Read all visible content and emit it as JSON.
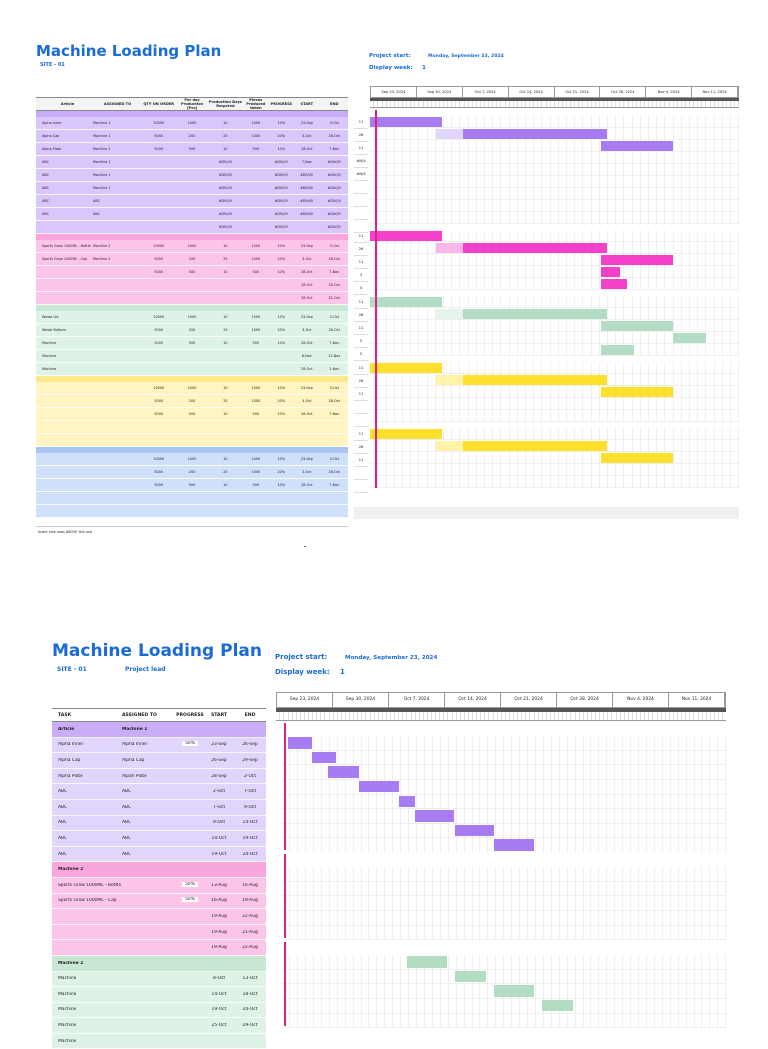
{
  "page1": {
    "title": "Machine Loading Plan",
    "site": "SITE - 01",
    "project_start_label": "Project start:",
    "project_start_value": "Monday, September 23, 2024",
    "display_week_label": "Display week:",
    "display_week_value": "1",
    "weeks": [
      "Sep 23, 2024",
      "Sep 30, 2024",
      "Oct 7, 2024",
      "Oct 14, 2024",
      "Oct 21, 2024",
      "Oct 28, 2024",
      "Nov 4, 2024",
      "Nov 11, 2024"
    ],
    "columns": [
      "Article",
      "ASSIGNED TO",
      "QTY ON ORDER",
      "Per day Production [Pcs]",
      "Production Days Required",
      "Pieces Produced taken",
      "PROGRESS",
      "START",
      "END"
    ],
    "sections": [
      {
        "color": "#d9c6fb",
        "bar_color": "#c9adf7",
        "gantt_color": "#a77cf2",
        "gantt_light": "#e2d5fb",
        "rows": [
          {
            "article": "Alpha Inner",
            "assigned": "Machine 1",
            "qty": "10000",
            "per_day": "1000",
            "days": "10",
            "pieces": "1000",
            "progress": "10%",
            "start": "23-Sep",
            "end": "3-Oct",
            "days_col": "11"
          },
          {
            "article": "Alpha Cap",
            "assigned": "Machine 1",
            "qty": "5000",
            "per_day": "200",
            "days": "25",
            "pieces": "1000",
            "progress": "20%",
            "start": "3-Oct",
            "end": "28-Oct",
            "days_col": "26"
          },
          {
            "article": "Alpha Plate",
            "assigned": "Machine 2",
            "qty": "5000",
            "per_day": "500",
            "days": "10",
            "pieces": "500",
            "progress": "10%",
            "start": "28-Oct",
            "end": "7-Nov",
            "days_col": "11"
          },
          {
            "article": "ABC",
            "assigned": "Machine 1",
            "qty": "",
            "per_day": "",
            "days": "#DIV/0!",
            "pieces": "",
            "progress": "#DIV/0!",
            "start": "7-Nov",
            "end": "#DIV/0!",
            "days_col": "#N/A"
          },
          {
            "article": "ABC",
            "assigned": "Machine 1",
            "qty": "",
            "per_day": "",
            "days": "#DIV/0!",
            "pieces": "",
            "progress": "#DIV/0!",
            "start": "#DIV/0!",
            "end": "#DIV/0!",
            "days_col": "#N/A"
          },
          {
            "article": "ABC",
            "assigned": "Machine 1",
            "qty": "",
            "per_day": "",
            "days": "#DIV/0!",
            "pieces": "",
            "progress": "#DIV/0!",
            "start": "#DIV/0!",
            "end": "#DIV/0!",
            "days_col": ""
          },
          {
            "article": "ABC",
            "assigned": "ABC",
            "qty": "",
            "per_day": "",
            "days": "#DIV/0!",
            "pieces": "",
            "progress": "#DIV/0!",
            "start": "#DIV/0!",
            "end": "#DIV/0!",
            "days_col": ""
          },
          {
            "article": "ABC",
            "assigned": "ABC",
            "qty": "",
            "per_day": "",
            "days": "#DIV/0!",
            "pieces": "",
            "progress": "#DIV/0!",
            "start": "#DIV/0!",
            "end": "#DIV/0!",
            "days_col": ""
          },
          {
            "article": "",
            "assigned": "",
            "qty": "",
            "per_day": "",
            "days": "#DIV/0!",
            "pieces": "",
            "progress": "#DIV/0!",
            "start": "",
            "end": "#DIV/0!",
            "days_col": ""
          }
        ]
      },
      {
        "color": "#fdc4ea",
        "bar_color": "#f9a6dd",
        "gantt_color": "#f441c9",
        "gantt_light": "#fab8e8",
        "rows": [
          {
            "article": "Sports Grow 1000ML - Bottle",
            "assigned": "Machine 2",
            "qty": "10000",
            "per_day": "1000",
            "days": "10",
            "pieces": "1000",
            "progress": "10%",
            "start": "23-Sep",
            "end": "3-Oct",
            "days_col": "11"
          },
          {
            "article": "Sports Grow 1000ML - Cap",
            "assigned": "Machine 2",
            "qty": "5000",
            "per_day": "200",
            "days": "25",
            "pieces": "1000",
            "progress": "20%",
            "start": "3-Oct",
            "end": "28-Oct",
            "days_col": "26"
          },
          {
            "article": "",
            "assigned": "",
            "qty": "5000",
            "per_day": "500",
            "days": "10",
            "pieces": "500",
            "progress": "10%",
            "start": "28-Oct",
            "end": "7-Nov",
            "days_col": "11"
          },
          {
            "article": "",
            "assigned": "",
            "qty": "",
            "per_day": "",
            "days": "",
            "pieces": "",
            "progress": "",
            "start": "28-Oct",
            "end": "30-Oct",
            "days_col": "3"
          },
          {
            "article": "",
            "assigned": "",
            "qty": "",
            "per_day": "",
            "days": "",
            "pieces": "",
            "progress": "",
            "start": "28-Oct",
            "end": "31-Oct",
            "days_col": "4"
          }
        ]
      },
      {
        "color": "#dff2e6",
        "bar_color": "#c8e8d4",
        "gantt_color": "#b3ddc2",
        "gantt_light": "#e4f4ea",
        "rows": [
          {
            "article": "Waste Lid",
            "assigned": "",
            "qty": "10000",
            "per_day": "1000",
            "days": "10",
            "pieces": "1000",
            "progress": "10%",
            "start": "23-Sep",
            "end": "3-Oct",
            "days_col": "11"
          },
          {
            "article": "Waste Bottom",
            "assigned": "",
            "qty": "5000",
            "per_day": "200",
            "days": "25",
            "pieces": "1000",
            "progress": "20%",
            "start": "3-Oct",
            "end": "28-Oct",
            "days_col": "26"
          },
          {
            "article": "Machine",
            "assigned": "",
            "qty": "5000",
            "per_day": "500",
            "days": "10",
            "pieces": "500",
            "progress": "10%",
            "start": "28-Oct",
            "end": "7-Nov",
            "days_col": "11"
          },
          {
            "article": "Machine",
            "assigned": "",
            "qty": "",
            "per_day": "",
            "days": "",
            "pieces": "",
            "progress": "",
            "start": "8-Nov",
            "end": "12-Nov",
            "days_col": "5"
          },
          {
            "article": "Machine",
            "assigned": "",
            "qty": "",
            "per_day": "",
            "days": "",
            "pieces": "",
            "progress": "",
            "start": "28-Oct",
            "end": "1-Nov",
            "days_col": "5"
          }
        ]
      },
      {
        "color": "#fff4c2",
        "bar_color": "#fde98a",
        "gantt_color": "#fde02b",
        "gantt_light": "#fff3a9",
        "rows": [
          {
            "article": "",
            "assigned": "",
            "qty": "10000",
            "per_day": "1000",
            "days": "10",
            "pieces": "1000",
            "progress": "10%",
            "start": "23-Sep",
            "end": "3-Oct",
            "days_col": "11"
          },
          {
            "article": "",
            "assigned": "",
            "qty": "5000",
            "per_day": "200",
            "days": "25",
            "pieces": "1000",
            "progress": "20%",
            "start": "3-Oct",
            "end": "28-Oct",
            "days_col": "26"
          },
          {
            "article": "",
            "assigned": "",
            "qty": "5000",
            "per_day": "500",
            "days": "10",
            "pieces": "500",
            "progress": "10%",
            "start": "28-Oct",
            "end": "7-Nov",
            "days_col": "11"
          },
          {
            "article": "",
            "assigned": "",
            "qty": "",
            "per_day": "",
            "days": "",
            "pieces": "",
            "progress": "",
            "start": "",
            "end": "",
            "days_col": ""
          },
          {
            "article": "",
            "assigned": "",
            "qty": "",
            "per_day": "",
            "days": "",
            "pieces": "",
            "progress": "",
            "start": "",
            "end": "",
            "days_col": ""
          }
        ]
      },
      {
        "color": "#cfe0fb",
        "bar_color": "#a9c6f3",
        "gantt_color": "#fde02b",
        "gantt_light": "#fff3a9",
        "rows": [
          {
            "article": "",
            "assigned": "",
            "qty": "10000",
            "per_day": "1000",
            "days": "10",
            "pieces": "1000",
            "progress": "10%",
            "start": "23-Sep",
            "end": "3-Oct",
            "days_col": "11"
          },
          {
            "article": "",
            "assigned": "",
            "qty": "5000",
            "per_day": "200",
            "days": "25",
            "pieces": "1000",
            "progress": "20%",
            "start": "3-Oct",
            "end": "28-Oct",
            "days_col": "26"
          },
          {
            "article": "",
            "assigned": "",
            "qty": "5000",
            "per_day": "500",
            "days": "10",
            "pieces": "500",
            "progress": "10%",
            "start": "28-Oct",
            "end": "7-Nov",
            "days_col": "11"
          },
          {
            "article": "",
            "assigned": "",
            "qty": "",
            "per_day": "",
            "days": "",
            "pieces": "",
            "progress": "",
            "start": "",
            "end": "",
            "days_col": ""
          },
          {
            "article": "",
            "assigned": "",
            "qty": "",
            "per_day": "",
            "days": "",
            "pieces": "",
            "progress": "",
            "start": "",
            "end": "",
            "days_col": ""
          }
        ]
      }
    ],
    "footer": "Insert new rows ABOVE this one"
  },
  "page2": {
    "title": "Machine Loading Plan",
    "site": "SITE - 01",
    "project_lead": "Project lead",
    "project_start_label": "Project start:",
    "project_start_value": "Monday, September 23, 2024",
    "display_week_label": "Display week:",
    "display_week_value": "1",
    "weeks": [
      "Sep 23, 2024",
      "Sep 30, 2024",
      "Oct 7, 2024",
      "Oct 14, 2024",
      "Oct 21, 2024",
      "Oct 28, 2024",
      "Nov 4, 2024",
      "Nov 11, 2024"
    ],
    "columns": [
      "TASK",
      "ASSIGNED TO",
      "PROGRESS",
      "START",
      "END"
    ],
    "groups": [
      {
        "header": "Article",
        "header_assigned": "Machine 1",
        "color": "#e2d5fb",
        "header_color": "#c9adf7",
        "gantt_color": "#a77cf2",
        "gantt_light": "#e2d5fb",
        "rows": [
          {
            "task": "Alpha Inner",
            "assigned": "Alpha Inner",
            "progress": "50%",
            "start": "23-Sep",
            "end": "26-Sep"
          },
          {
            "task": "Alpha Cap",
            "assigned": "Alpha Cap",
            "progress": "",
            "start": "26-Sep",
            "end": "29-Sep"
          },
          {
            "task": "Alpha Plate",
            "assigned": "Alpah Plate",
            "progress": "",
            "start": "28-Sep",
            "end": "2-Oct"
          },
          {
            "task": "ABC",
            "assigned": "ABC",
            "progress": "",
            "start": "2-Oct",
            "end": "7-Oct"
          },
          {
            "task": "ABC",
            "assigned": "ABC",
            "progress": "",
            "start": "7-Oct",
            "end": "9-Oct"
          },
          {
            "task": "ABC",
            "assigned": "ABC",
            "progress": "",
            "start": "9-Oct",
            "end": "14-Oct"
          },
          {
            "task": "ABC",
            "assigned": "ABC",
            "progress": "",
            "start": "14-Oct",
            "end": "19-Oct"
          },
          {
            "task": "ABC",
            "assigned": "ABC",
            "progress": "",
            "start": "19-Oct",
            "end": "24-Oct"
          }
        ]
      },
      {
        "header": "Machine 2",
        "header_assigned": "",
        "color": "#fdc4ea",
        "header_color": "#f9a6dd",
        "gantt_color": "#f441c9",
        "gantt_light": "#fab8e8",
        "rows": [
          {
            "task": "Sports Grow 1000ML - Bottle",
            "assigned": "",
            "progress": "50%",
            "start": "13-Aug",
            "end": "16-Aug"
          },
          {
            "task": "Sports Grow 1000ML - Cap",
            "assigned": "",
            "progress": "50%",
            "start": "16-Aug",
            "end": "19-Aug"
          },
          {
            "task": "",
            "assigned": "",
            "progress": "",
            "start": "19-Aug",
            "end": "22-Aug"
          },
          {
            "task": "",
            "assigned": "",
            "progress": "",
            "start": "19-Aug",
            "end": "21-Aug"
          },
          {
            "task": "",
            "assigned": "",
            "progress": "",
            "start": "19-Aug",
            "end": "22-Aug"
          }
        ]
      },
      {
        "header": "Machine 2",
        "header_assigned": "",
        "color": "#dff2e6",
        "header_color": "#c8e8d4",
        "gantt_color": "#b3ddc2",
        "gantt_light": "#e4f4ea",
        "rows": [
          {
            "task": "Machine",
            "assigned": "",
            "progress": "",
            "start": "8-Oct",
            "end": "13-Oct"
          },
          {
            "task": "Machine",
            "assigned": "",
            "progress": "",
            "start": "14-Oct",
            "end": "18-Oct"
          },
          {
            "task": "Machine",
            "assigned": "",
            "progress": "",
            "start": "19-Oct",
            "end": "24-Oct"
          },
          {
            "task": "Machine",
            "assigned": "",
            "progress": "",
            "start": "25-Oct",
            "end": "29-Oct"
          },
          {
            "task": "Machine",
            "assigned": "",
            "progress": "",
            "start": "",
            "end": ""
          }
        ]
      }
    ]
  },
  "chart_data": [
    {
      "type": "gantt",
      "title": "Machine Loading Plan",
      "x_start": "2024-09-23",
      "tasks": [
        {
          "group": "1",
          "start": "2024-09-23",
          "end": "2024-10-03"
        },
        {
          "group": "1",
          "start": "2024-10-03",
          "end": "2024-10-28"
        },
        {
          "group": "1",
          "start": "2024-10-28",
          "end": "2024-11-07"
        },
        {
          "group": "2",
          "start": "2024-09-23",
          "end": "2024-10-03"
        },
        {
          "group": "2",
          "start": "2024-10-03",
          "end": "2024-10-28"
        },
        {
          "group": "2",
          "start": "2024-10-28",
          "end": "2024-11-07"
        },
        {
          "group": "2",
          "start": "2024-10-28",
          "end": "2024-10-30"
        },
        {
          "group": "2",
          "start": "2024-10-28",
          "end": "2024-10-31"
        },
        {
          "group": "3",
          "start": "2024-09-23",
          "end": "2024-10-03"
        },
        {
          "group": "3",
          "start": "2024-10-03",
          "end": "2024-10-28"
        },
        {
          "group": "3",
          "start": "2024-10-28",
          "end": "2024-11-07"
        },
        {
          "group": "3",
          "start": "2024-11-08",
          "end": "2024-11-12"
        },
        {
          "group": "3",
          "start": "2024-10-28",
          "end": "2024-11-01"
        },
        {
          "group": "4",
          "start": "2024-09-23",
          "end": "2024-10-03"
        },
        {
          "group": "4",
          "start": "2024-10-03",
          "end": "2024-10-28"
        },
        {
          "group": "4",
          "start": "2024-10-28",
          "end": "2024-11-07"
        },
        {
          "group": "5",
          "start": "2024-09-23",
          "end": "2024-10-03"
        },
        {
          "group": "5",
          "start": "2024-10-03",
          "end": "2024-10-28"
        },
        {
          "group": "5",
          "start": "2024-10-28",
          "end": "2024-11-07"
        }
      ]
    }
  ]
}
